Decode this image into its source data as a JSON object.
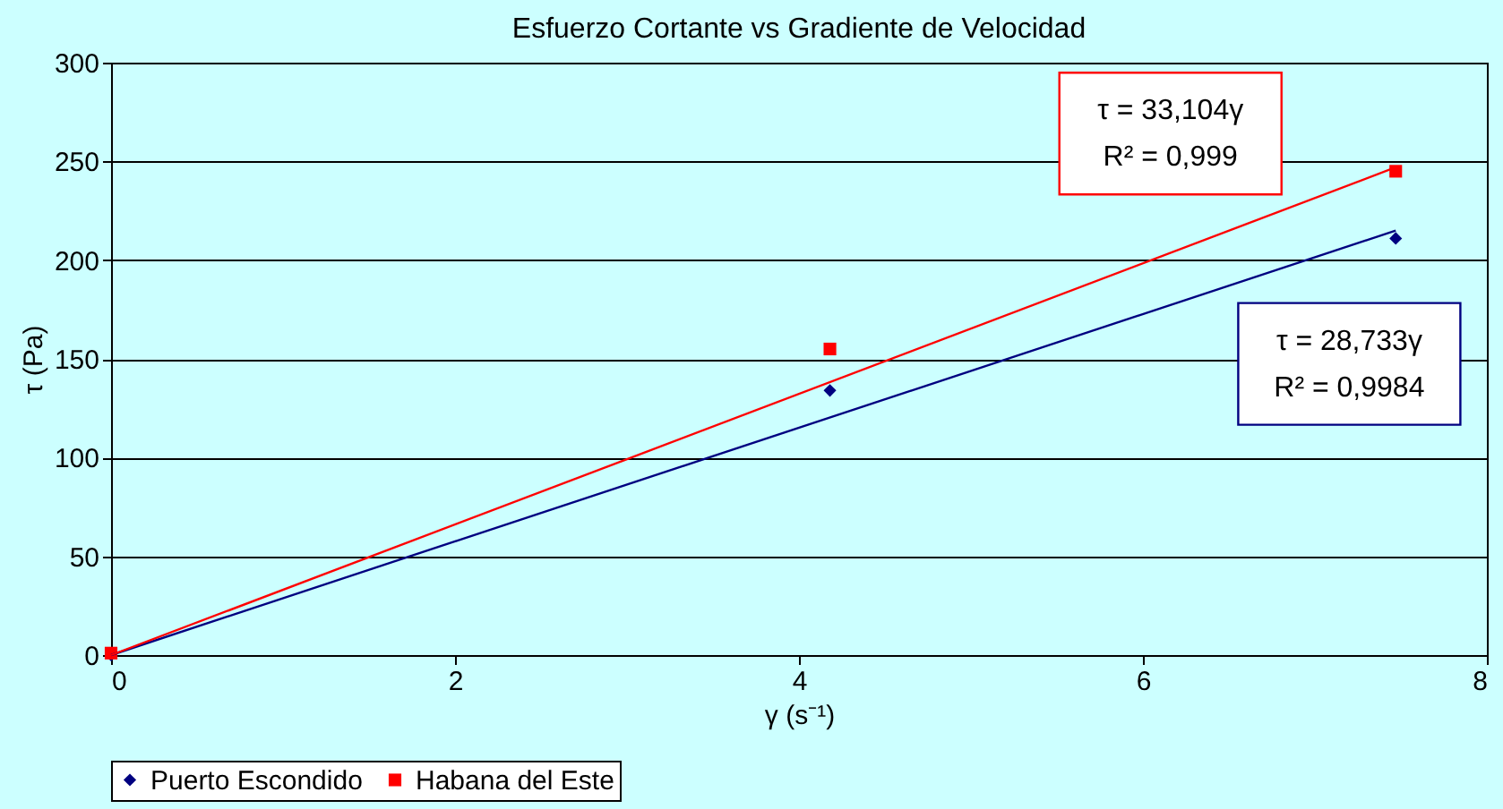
{
  "chart_data": {
    "type": "scatter",
    "title": "Esfuerzo Cortante vs Gradiente de Velocidad",
    "xlabel": "γ (s⁻¹)",
    "ylabel": "τ (Pa)",
    "xlim": [
      0,
      8
    ],
    "xticks": [
      0,
      2,
      4,
      6,
      8
    ],
    "ylim": [
      0,
      300
    ],
    "yticks": [
      0,
      50,
      100,
      150,
      200,
      250,
      300
    ],
    "grid": "y",
    "legend": "bottom",
    "series": [
      {
        "name": "Puerto Escondido",
        "color": "#000080",
        "marker": "diamond",
        "x": [
          0,
          4.18,
          7.47
        ],
        "values": [
          0,
          134,
          211
        ]
      },
      {
        "name": "Habana del Este",
        "color": "#ff0000",
        "marker": "square",
        "x": [
          0,
          4.18,
          7.47
        ],
        "values": [
          1,
          155,
          245
        ]
      },
      {
        "type": "line",
        "color": "#000080",
        "x": [
          0,
          7.47
        ],
        "values": [
          0,
          215
        ]
      },
      {
        "type": "line",
        "color": "#ff0000",
        "x": [
          0,
          7.47
        ],
        "values": [
          0,
          247
        ]
      }
    ],
    "annotations": [
      "τ = 33,104γ\nR² = 0,999",
      "τ = 28,733γ\nR² = 0,9984"
    ]
  }
}
